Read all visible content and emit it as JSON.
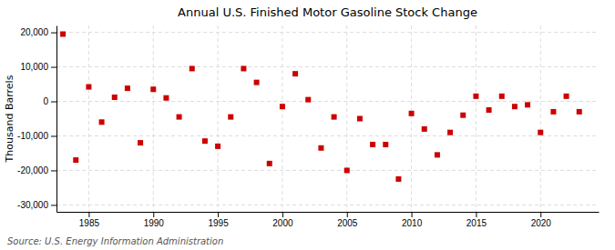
{
  "chart_data": {
    "type": "scatter",
    "title": "Annual U.S. Finished Motor Gasoline Stock Change",
    "ylabel": "Thousand Barrels",
    "source": "Source: U.S. Energy Information Administration",
    "x": [
      1983,
      1984,
      1985,
      1986,
      1987,
      1988,
      1989,
      1990,
      1991,
      1992,
      1993,
      1994,
      1995,
      1996,
      1997,
      1998,
      1999,
      2000,
      2001,
      2002,
      2003,
      2004,
      2005,
      2006,
      2007,
      2008,
      2009,
      2010,
      2011,
      2012,
      2013,
      2014,
      2015,
      2016,
      2017,
      2018,
      2019,
      2020,
      2021,
      2022,
      2023
    ],
    "values": [
      19500,
      -17000,
      4200,
      -6000,
      1200,
      3800,
      -12000,
      3500,
      1000,
      -4500,
      9500,
      -11500,
      -13000,
      -4500,
      9500,
      5500,
      -18000,
      -1500,
      8000,
      500,
      -13500,
      -4500,
      -20000,
      -5000,
      -12500,
      -12500,
      -22500,
      -3500,
      -8000,
      -15500,
      -9000,
      -4000,
      1500,
      -2500,
      1500,
      -1500,
      -1000,
      -9000,
      -3000,
      1500,
      -3000
    ],
    "color": "#cc0000",
    "marker": "square",
    "xlim": [
      1982.5,
      2024.5
    ],
    "xticks": [
      1985,
      1990,
      1995,
      2000,
      2005,
      2010,
      2015,
      2020
    ],
    "ylim": [
      -32000,
      22000
    ],
    "yticks": [
      {
        "value": -30000,
        "label": "-30,000"
      },
      {
        "value": -20000,
        "label": "-20,000"
      },
      {
        "value": -10000,
        "label": "-10,000"
      },
      0,
      {
        "value": 10000,
        "label": "10,000"
      },
      {
        "value": 20000,
        "label": "20,000"
      }
    ],
    "grid": true
  }
}
